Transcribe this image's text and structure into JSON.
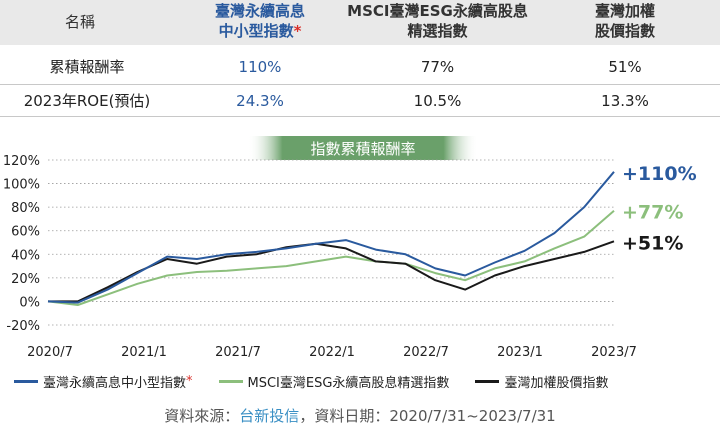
{
  "table": {
    "header": {
      "name": "名稱",
      "col1_line1": "臺灣永續高息",
      "col1_line2": "中小型指數",
      "col1_mark": "*",
      "col2_line1": "MSCI臺灣ESG永續高股息",
      "col2_line2": "精選指數",
      "col3_line1": "臺灣加權",
      "col3_line2": "股價指數"
    },
    "rows": [
      {
        "label": "累積報酬率",
        "v1": "110%",
        "v2": "77%",
        "v3": "51%"
      },
      {
        "label": "2023年ROE(預估)",
        "v1": "24.3%",
        "v2": "10.5%",
        "v3": "13.3%"
      }
    ]
  },
  "colors": {
    "blue": "#2a5a9e",
    "green": "#8cbf7c",
    "black": "#1a1a1a",
    "banner": "#6aa06a"
  },
  "chart_data": {
    "type": "line",
    "title": "指數累積報酬率",
    "ylim": [
      -20,
      120
    ],
    "y_ticks": [
      "120%",
      "100%",
      "80%",
      "60%",
      "40%",
      "20%",
      "0%",
      "-20%"
    ],
    "x_ticks": [
      "2020/7",
      "2021/1",
      "2021/7",
      "2022/1",
      "2022/7",
      "2023/1",
      "2023/7"
    ],
    "x": [
      "2020/7",
      "2020/9",
      "2020/11",
      "2021/1",
      "2021/3",
      "2021/5",
      "2021/7",
      "2021/9",
      "2021/11",
      "2022/1",
      "2022/3",
      "2022/5",
      "2022/7",
      "2022/9",
      "2022/11",
      "2023/1",
      "2023/3",
      "2023/5",
      "2023/6",
      "2023/7"
    ],
    "series": [
      {
        "name": "臺灣永續高息中小型指數",
        "color": "blue",
        "end_label": "+110%",
        "values": [
          0,
          -1,
          10,
          24,
          38,
          36,
          40,
          42,
          45,
          49,
          52,
          44,
          40,
          28,
          22,
          33,
          43,
          58,
          80,
          110
        ]
      },
      {
        "name": "MSCI臺灣ESG永續高股息精選指數",
        "color": "green",
        "end_label": "+77%",
        "values": [
          0,
          -3,
          6,
          15,
          22,
          25,
          26,
          28,
          30,
          34,
          38,
          34,
          32,
          24,
          18,
          28,
          34,
          45,
          55,
          77
        ]
      },
      {
        "name": "臺灣加權股價指數",
        "color": "black",
        "end_label": "+51%",
        "values": [
          0,
          0,
          12,
          25,
          36,
          32,
          38,
          40,
          46,
          49,
          45,
          34,
          32,
          18,
          10,
          22,
          30,
          36,
          42,
          51
        ]
      }
    ]
  },
  "source": {
    "prefix": "資料來源：",
    "provider": "台新投信",
    "suffix": "，資料日期：2020/7/31~2023/7/31"
  }
}
